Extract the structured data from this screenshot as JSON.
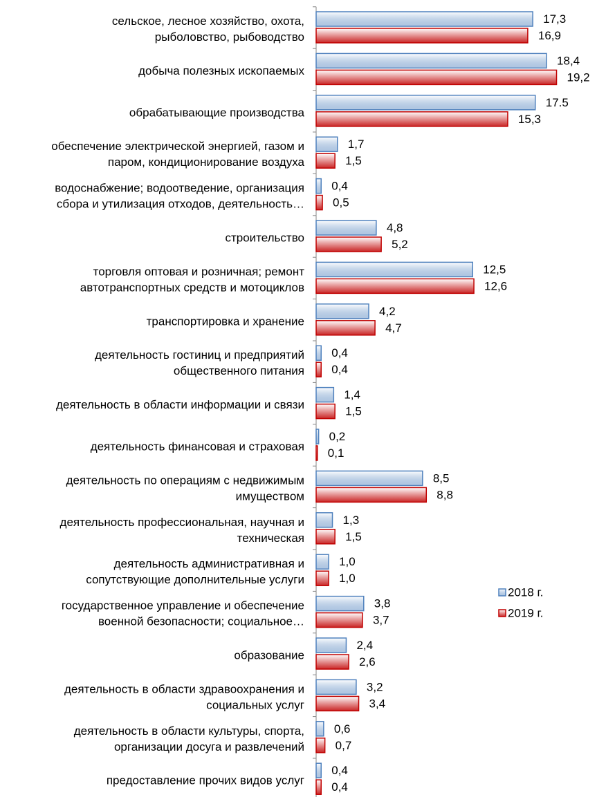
{
  "chart_data": {
    "type": "hbar",
    "categories": [
      [
        "сельское, лесное хозяйство, охота,",
        "рыболовство, рыбоводство"
      ],
      [
        "добыча полезных ископаемых"
      ],
      [
        "обрабатывающие производства"
      ],
      [
        "обеспечение электрической энергией, газом и",
        "паром, кондиционирование воздуха"
      ],
      [
        "водоснабжение; водоотведение, организация",
        "сбора и утилизация отходов, деятельность…"
      ],
      [
        "строительство"
      ],
      [
        "торговля оптовая и розничная; ремонт",
        "автотранспортных средств и мотоциклов"
      ],
      [
        "транспортировка и хранение"
      ],
      [
        "деятельность гостиниц и предприятий",
        "общественного питания"
      ],
      [
        "деятельность в области информации и связи"
      ],
      [
        "деятельность финансовая и страховая"
      ],
      [
        "деятельность по операциям с недвижимым",
        "имуществом"
      ],
      [
        "деятельность профессиональная, научная и",
        "техническая"
      ],
      [
        "деятельность административная и",
        "сопутствующие дополнительные услуги"
      ],
      [
        "государственное управление и обеспечение",
        "военной безопасности; социальное…"
      ],
      [
        "образование"
      ],
      [
        "деятельность в области здравоохранения и",
        "социальных услуг"
      ],
      [
        "деятельность в области культуры, спорта,",
        "организации досуга и развлечений"
      ],
      [
        "предоставление прочих видов услуг"
      ]
    ],
    "series": [
      {
        "name": "2018 г.",
        "color": "#4f81bd",
        "values": [
          17.3,
          18.4,
          17.5,
          1.7,
          0.4,
          4.8,
          12.5,
          4.2,
          0.4,
          1.4,
          0.2,
          8.5,
          1.3,
          1.0,
          3.8,
          2.4,
          3.2,
          0.6,
          0.4
        ],
        "value_labels": [
          "17,3",
          "18,4",
          "17.5",
          "1,7",
          "0,4",
          "4,8",
          "12,5",
          "4,2",
          "0,4",
          "1,4",
          "0,2",
          "8,5",
          "1,3",
          "1,0",
          "3,8",
          "2,4",
          "3,2",
          "0,6",
          "0,4"
        ]
      },
      {
        "name": "2019 г.",
        "color": "#c00000",
        "values": [
          16.9,
          19.2,
          15.3,
          1.5,
          0.5,
          5.2,
          12.6,
          4.7,
          0.4,
          1.5,
          0.1,
          8.8,
          1.5,
          1.0,
          3.7,
          2.6,
          3.4,
          0.7,
          0.4
        ],
        "value_labels": [
          "16,9",
          "19,2",
          "15,3",
          "1,5",
          "0,5",
          "5,2",
          "12,6",
          "4,7",
          "0,4",
          "1,5",
          "0,1",
          "8,8",
          "1,5",
          "1,0",
          "3,7",
          "2,6",
          "3,4",
          "0,7",
          "0,4"
        ]
      }
    ],
    "xlim": [
      0,
      20
    ],
    "legend": "right"
  }
}
